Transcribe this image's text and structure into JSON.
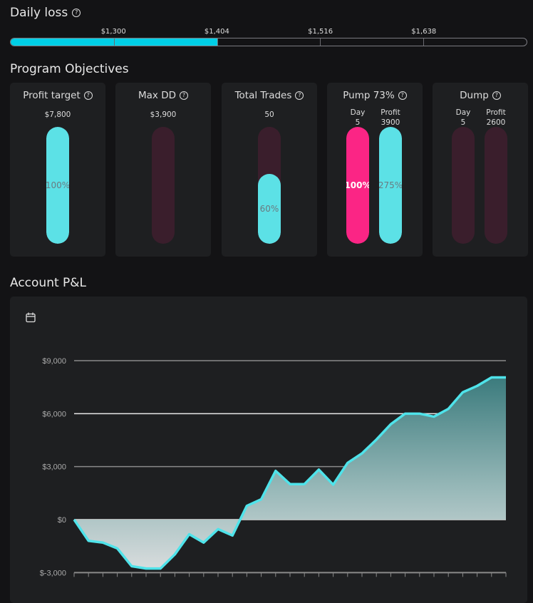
{
  "daily_loss": {
    "title": "Daily loss",
    "tick_labels": [
      "$1,300",
      "$1,404",
      "$1,516",
      "$1,638"
    ],
    "fill_percent": 40,
    "fill_color": "#00cfe6"
  },
  "objectives": {
    "title": "Program Objectives",
    "cards": [
      {
        "title": "Profit target",
        "value": "$7,800",
        "percent_label": "100%",
        "fill": 100
      },
      {
        "title": "Max DD",
        "value": "$3,900",
        "percent_label": "",
        "fill": 0
      },
      {
        "title": "Total Trades",
        "value": "50",
        "percent_label": "60%",
        "fill": 60
      },
      {
        "title": "Pump 73%",
        "bars": [
          {
            "label": "Day",
            "value": "5",
            "percent_label": "100%",
            "fill": 100,
            "color": "#fb2585"
          },
          {
            "label": "Profit",
            "value": "3900",
            "percent_label": "275%",
            "fill": 100,
            "color": "#5ce1e6"
          }
        ]
      },
      {
        "title": "Dump",
        "bars": [
          {
            "label": "Day",
            "value": "5",
            "percent_label": "",
            "fill": 0
          },
          {
            "label": "Profit",
            "value": "2600",
            "percent_label": "",
            "fill": 0
          }
        ]
      }
    ],
    "colors": {
      "fill": "#5ce1e6",
      "track": "#3a1e2c"
    }
  },
  "account_pl": {
    "title": "Account P&L",
    "icon": "calendar-icon"
  },
  "chart_data": {
    "type": "area",
    "ylim": [
      -3000,
      9000
    ],
    "y_ticks": [
      9000,
      6000,
      3000,
      0,
      -3000
    ],
    "y_tick_labels": [
      "$9,000",
      "$6,000",
      "$3,000",
      "$0",
      "$-3,000"
    ],
    "grid": true,
    "line_color": "#4fe3ea",
    "values": [
      0,
      -1200,
      -1300,
      -1630,
      -2640,
      -2770,
      -2770,
      -1970,
      -830,
      -1300,
      -540,
      -900,
      780,
      1150,
      2760,
      2010,
      2010,
      2830,
      1980,
      3210,
      3750,
      4530,
      5400,
      6000,
      6000,
      5830,
      6270,
      7210,
      7570,
      8050,
      8050
    ]
  }
}
